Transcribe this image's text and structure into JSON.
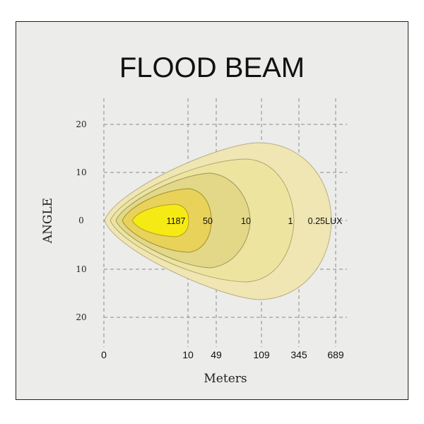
{
  "chart_data": {
    "type": "area",
    "title": "FLOOD  BEAM",
    "xlabel": "Meters",
    "ylabel": "ANGLE",
    "y_ticks": [
      "20",
      "10",
      "0",
      "10",
      "20"
    ],
    "x_ticks": [
      "0",
      "10",
      "49",
      "109",
      "345",
      "689"
    ],
    "grid": true,
    "series": [
      {
        "name": "0.25LUX",
        "label": "0.25LUX",
        "color": "#efe6b4"
      },
      {
        "name": "1",
        "label": "1",
        "color": "#ede4a0"
      },
      {
        "name": "10",
        "label": "10",
        "color": "#e2d888"
      },
      {
        "name": "50",
        "label": "50",
        "color": "#e9d25a"
      },
      {
        "name": "1187",
        "label": "1187",
        "color": "#f6ea14"
      }
    ]
  }
}
